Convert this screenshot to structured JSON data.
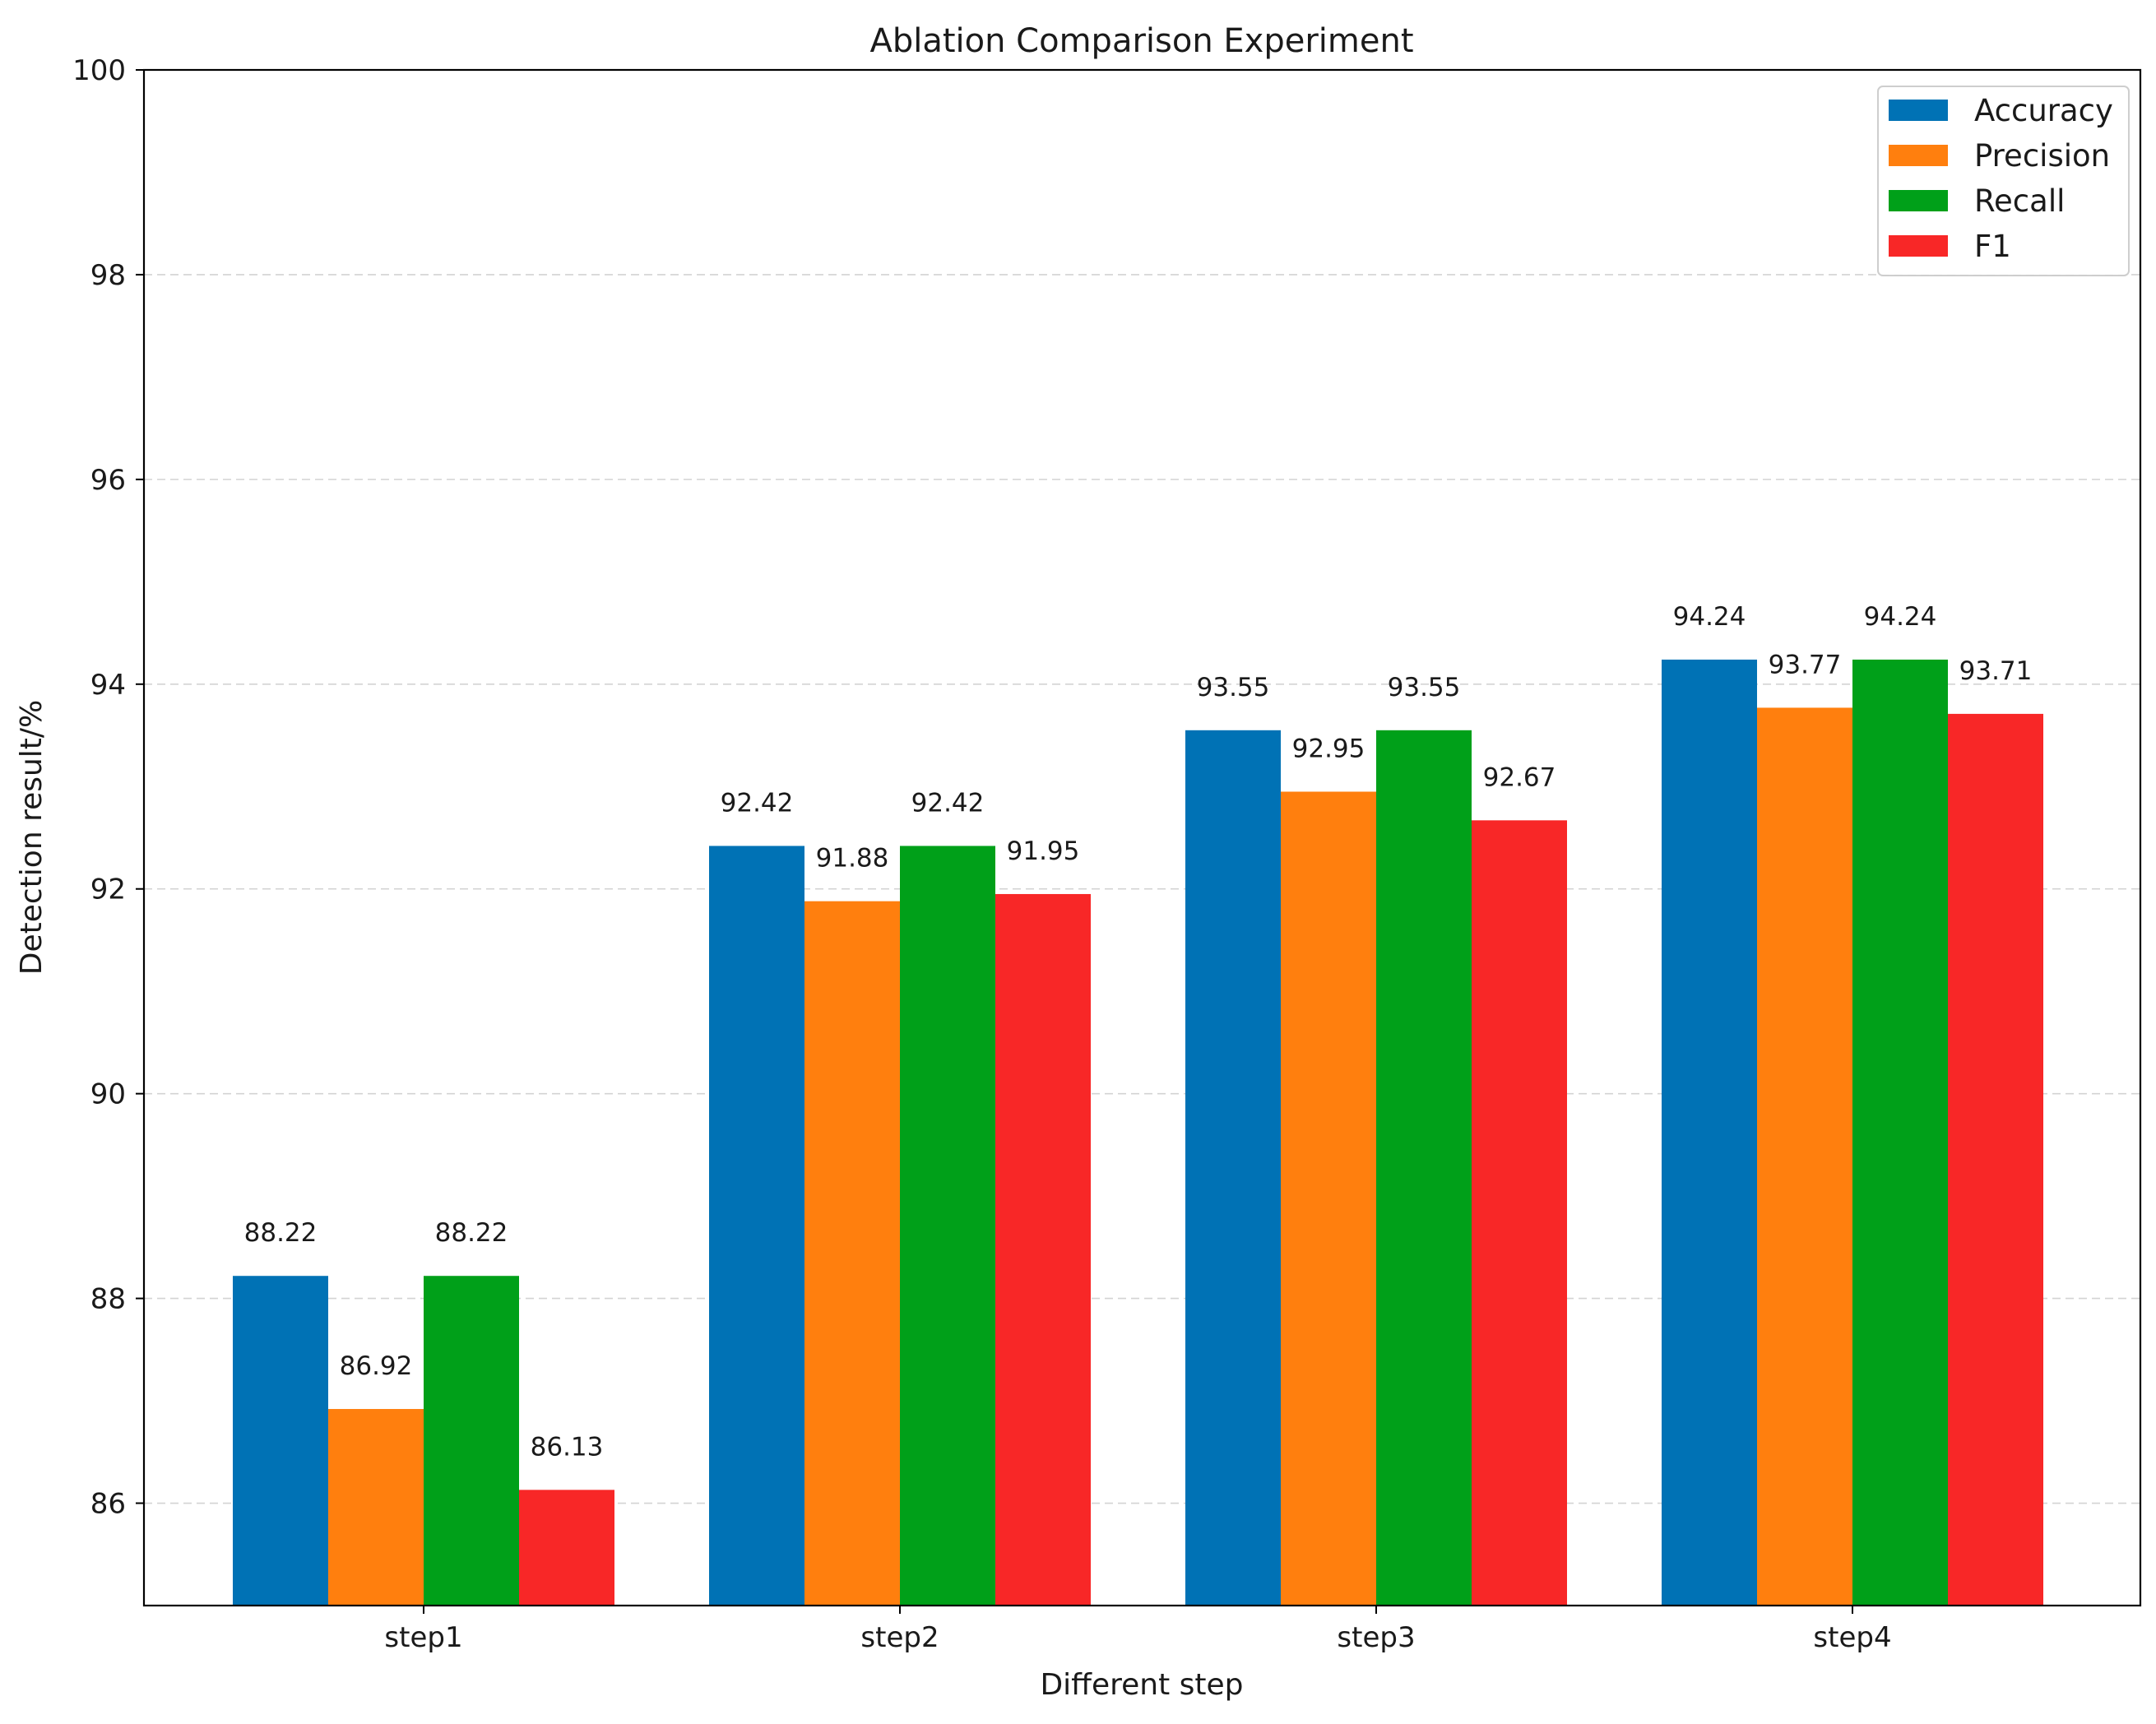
{
  "chart_data": {
    "type": "bar",
    "title": "Ablation Comparison Experiment",
    "xlabel": "Different step",
    "ylabel": "Detection result/%",
    "categories": [
      "step1",
      "step2",
      "step3",
      "step4"
    ],
    "ylim": [
      85,
      100
    ],
    "yticks": [
      86,
      88,
      90,
      92,
      94,
      96,
      98,
      100
    ],
    "grid": "y-dashed",
    "legend_position": "top-right",
    "series": [
      {
        "name": "Accuracy",
        "color": "#0072b5",
        "values": [
          88.22,
          92.42,
          93.55,
          94.24
        ]
      },
      {
        "name": "Precision",
        "color": "#ff7f0e",
        "values": [
          86.92,
          91.88,
          92.95,
          93.77
        ]
      },
      {
        "name": "Recall",
        "color": "#00a019",
        "values": [
          88.22,
          92.42,
          93.55,
          94.24
        ]
      },
      {
        "name": "F1",
        "color": "#f82727",
        "values": [
          86.13,
          91.95,
          92.67,
          93.71
        ]
      }
    ]
  }
}
